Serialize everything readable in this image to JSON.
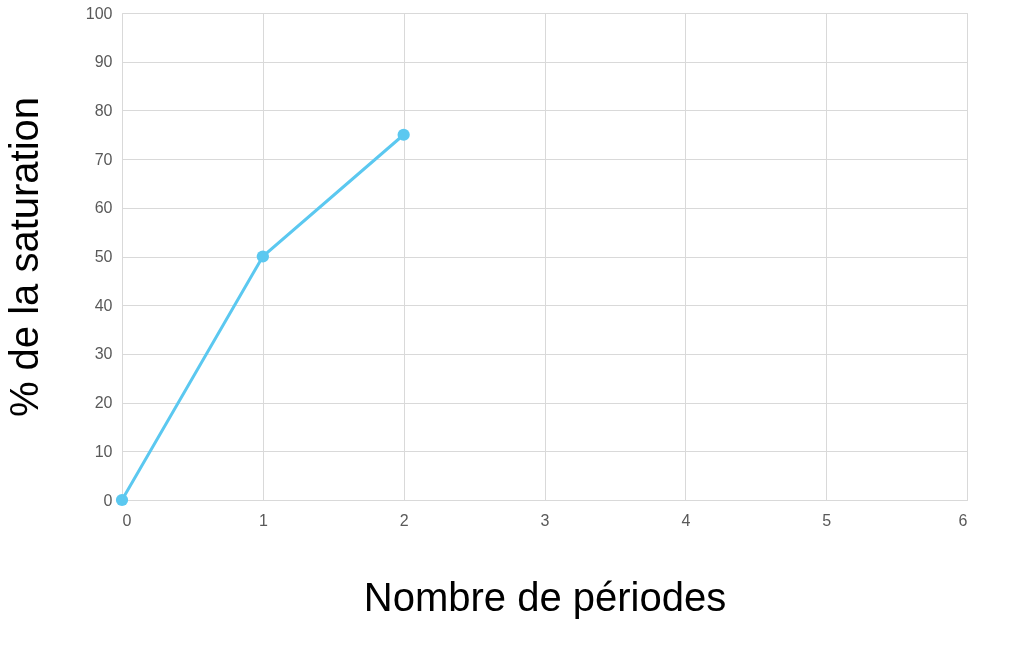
{
  "chart_data": {
    "type": "line",
    "xlabel": "Nombre de périodes",
    "ylabel": "% de la saturation",
    "x": [
      0,
      1,
      2
    ],
    "series": [
      {
        "color": "#5bc8f0",
        "values": [
          0,
          50,
          75
        ]
      }
    ],
    "xlim": [
      0,
      6
    ],
    "xticks": [
      0,
      1,
      2,
      3,
      4,
      5,
      6
    ],
    "ylim": [
      0,
      100
    ],
    "yticks": [
      0,
      10,
      20,
      30,
      40,
      50,
      60,
      70,
      80,
      90,
      100
    ],
    "grid": true,
    "marker": "circle",
    "line_style": "solid"
  }
}
